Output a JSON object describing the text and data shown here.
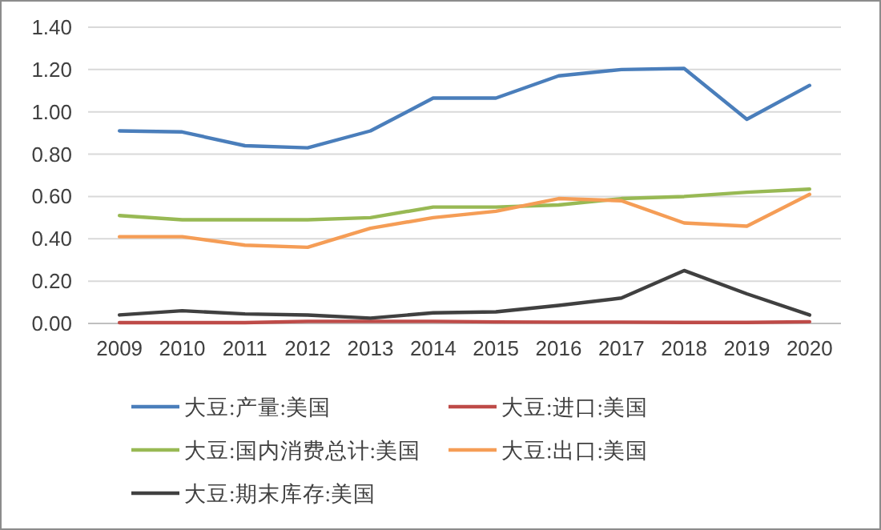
{
  "chart_data": {
    "type": "line",
    "categories": [
      "2009",
      "2010",
      "2011",
      "2012",
      "2013",
      "2014",
      "2015",
      "2016",
      "2017",
      "2018",
      "2019",
      "2020"
    ],
    "series": [
      {
        "name": "大豆:产量:美国",
        "color": "#4a7ebb",
        "values": [
          0.91,
          0.905,
          0.84,
          0.83,
          0.91,
          1.065,
          1.065,
          1.17,
          1.2,
          1.205,
          0.965,
          1.125
        ]
      },
      {
        "name": "大豆:进口:美国",
        "color": "#be4b48",
        "values": [
          0.004,
          0.004,
          0.004,
          0.01,
          0.01,
          0.01,
          0.007,
          0.006,
          0.006,
          0.005,
          0.005,
          0.008
        ]
      },
      {
        "name": "大豆:国内消费总计:美国",
        "color": "#98b954",
        "values": [
          0.51,
          0.49,
          0.49,
          0.49,
          0.5,
          0.55,
          0.55,
          0.56,
          0.59,
          0.6,
          0.62,
          0.635
        ]
      },
      {
        "name": "大豆:出口:美国",
        "color": "#f59d56",
        "values": [
          0.41,
          0.41,
          0.37,
          0.36,
          0.45,
          0.5,
          0.53,
          0.59,
          0.58,
          0.475,
          0.46,
          0.61
        ]
      },
      {
        "name": "大豆:期末库存:美国",
        "color": "#404040",
        "values": [
          0.04,
          0.06,
          0.045,
          0.04,
          0.025,
          0.05,
          0.055,
          0.085,
          0.12,
          0.25,
          0.14,
          0.04
        ]
      }
    ],
    "ylim": [
      0,
      1.4
    ],
    "yticks": [
      {
        "value": 0,
        "label": "0.00"
      },
      {
        "value": 0.2,
        "label": "0.20"
      },
      {
        "value": 0.4,
        "label": "0.40"
      },
      {
        "value": 0.6,
        "label": "0.60"
      },
      {
        "value": 0.8,
        "label": "0.80"
      },
      {
        "value": 1.0,
        "label": "1.00"
      },
      {
        "value": 1.2,
        "label": "1.20"
      },
      {
        "value": 1.4,
        "label": "1.40"
      }
    ],
    "grid": "y",
    "legend": "bottom"
  }
}
